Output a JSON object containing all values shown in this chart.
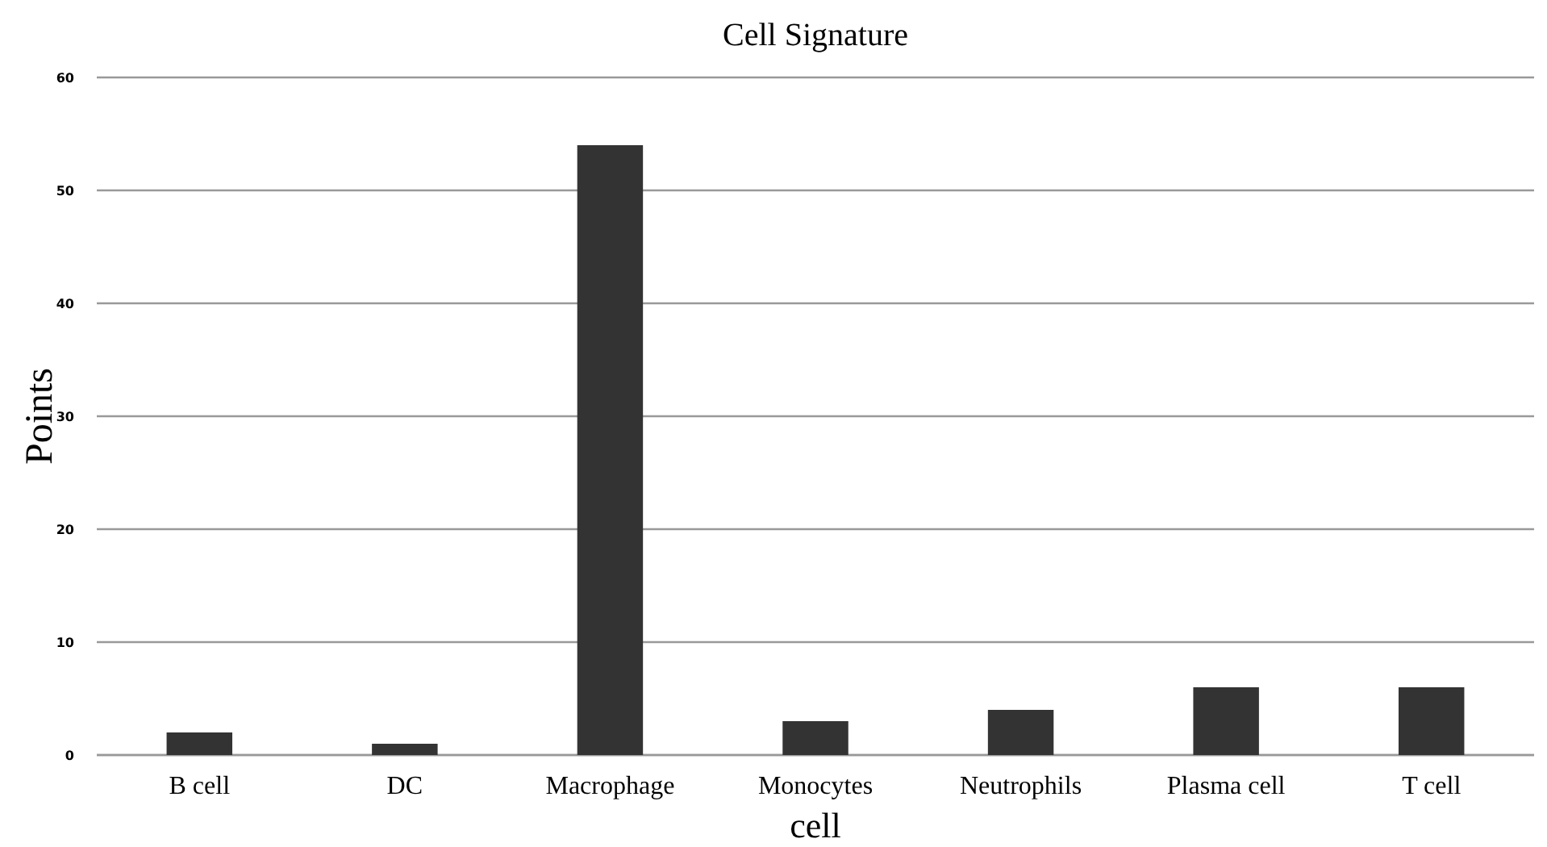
{
  "chart_data": {
    "type": "bar",
    "title": "Cell Signature",
    "xlabel": "cell",
    "ylabel": "Points",
    "categories": [
      "B cell",
      "DC",
      "Macrophage",
      "Monocytes",
      "Neutrophils",
      "Plasma cell",
      "T cell"
    ],
    "values": [
      2,
      1,
      54,
      3,
      4,
      6,
      6
    ],
    "color": "#333333",
    "ylim": [
      0,
      60
    ],
    "yticks": [
      0,
      10,
      20,
      30,
      40,
      50,
      60
    ],
    "grid": "y"
  }
}
